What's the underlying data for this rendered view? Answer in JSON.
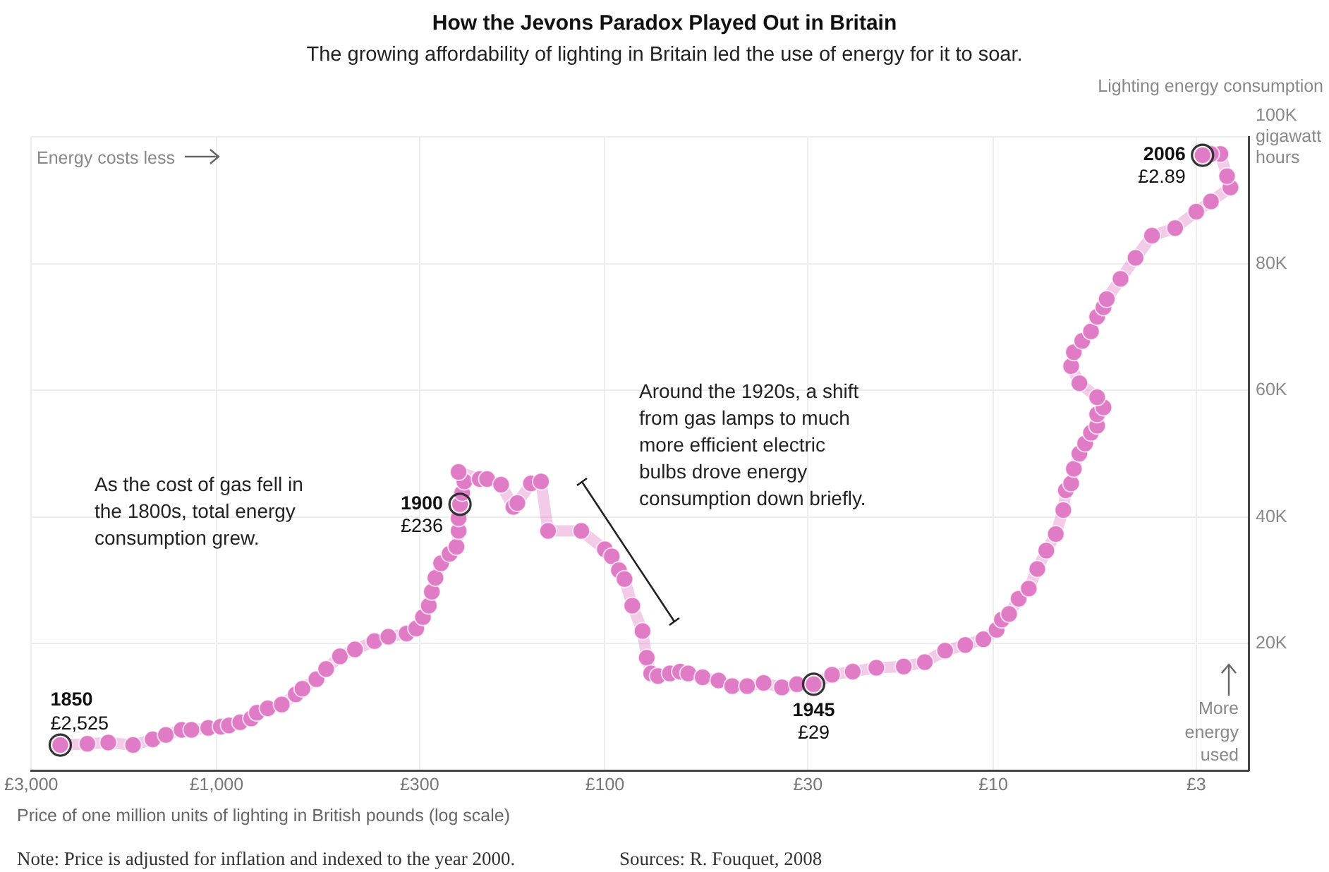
{
  "chart_data": {
    "type": "line",
    "title": "How the Jevons Paradox Played Out in Britain",
    "subtitle": "The growing affordability of lighting in Britain led the use of energy for it to soar.",
    "xlabel": "Price of one million units of lighting in British pounds (log scale)",
    "ylabel": "Lighting energy consumption",
    "log": "x",
    "grid": true,
    "marker": "circle",
    "xlim": [
      3000,
      2.2
    ],
    "xticks": [
      {
        "value": 3000,
        "label": "£3,000"
      },
      {
        "value": 1000,
        "label": "£1,000"
      },
      {
        "value": 300,
        "label": "£300"
      },
      {
        "value": 100,
        "label": "£100"
      },
      {
        "value": 30,
        "label": "£30"
      },
      {
        "value": 10,
        "label": "£10"
      },
      {
        "value": 3,
        "label": "£3"
      }
    ],
    "ylim": [
      0,
      100000
    ],
    "yticks": [
      {
        "value": 20000,
        "label": "20K"
      },
      {
        "value": 40000,
        "label": "40K"
      },
      {
        "value": 60000,
        "label": "60K"
      },
      {
        "value": 80000,
        "label": "80K"
      },
      {
        "value": 100000,
        "label": "100K\ngigawatt\nhours"
      }
    ],
    "x": [
      2525,
      2150,
      1900,
      1640,
      1460,
      1350,
      1230,
      1160,
      1050,
      975,
      929,
      869,
      814,
      787,
      738,
      679,
      625,
      601,
      553,
      522,
      481,
      440,
      392,
      361,
      324,
      306,
      294,
      284,
      279,
      273,
      264,
      251,
      241,
      238,
      238,
      236,
      233,
      230,
      238,
      210,
      201,
      185,
      172,
      168,
      155,
      146,
      140,
      115,
      100,
      96,
      92,
      89,
      85,
      80,
      78,
      76,
      73,
      68,
      64,
      61,
      56,
      51,
      47,
      43,
      39,
      35,
      32,
      29,
      26,
      23,
      20,
      17,
      15,
      13.3,
      11.8,
      10.6,
      9.8,
      9.5,
      9.1,
      8.6,
      8.1,
      7.7,
      7.3,
      6.9,
      6.6,
      6.5,
      6.3,
      6.2,
      6,
      5.8,
      5.6,
      5.4,
      5.4,
      5.2,
      5.4,
      6,
      6.3,
      6.2,
      5.9,
      5.6,
      5.4,
      5.2,
      5.1,
      4.7,
      4.3,
      3.9,
      3.4,
      3.0,
      2.75,
      2.45,
      2.5,
      2.6,
      2.75,
      2.89
    ],
    "series": [
      {
        "color": "#e07bc5",
        "values": [
          4000,
          4200,
          4400,
          4000,
          4900,
          5600,
          6400,
          6400,
          6700,
          6900,
          7100,
          7600,
          8200,
          9100,
          9800,
          10400,
          12000,
          12900,
          14400,
          16000,
          18000,
          19100,
          20400,
          21100,
          21600,
          22400,
          24200,
          26000,
          28200,
          30400,
          32700,
          34200,
          35300,
          37800,
          39800,
          42000,
          43800,
          45600,
          47100,
          46000,
          46000,
          45100,
          41600,
          42200,
          45300,
          45600,
          37800,
          37800,
          34900,
          33800,
          31600,
          30200,
          26000,
          22000,
          17800,
          15300,
          14900,
          15300,
          15600,
          15300,
          14700,
          14200,
          13300,
          13300,
          13800,
          13100,
          13600,
          13600,
          15100,
          15600,
          16200,
          16400,
          17100,
          18900,
          19800,
          20700,
          22200,
          23800,
          24700,
          27100,
          28700,
          31800,
          34700,
          37300,
          41100,
          44200,
          45300,
          47600,
          50000,
          51600,
          53300,
          54400,
          56200,
          57300,
          58900,
          61100,
          63800,
          66000,
          67800,
          69300,
          71600,
          73100,
          74400,
          77600,
          80900,
          84400,
          85600,
          88200,
          89800,
          92000,
          93800,
          97300,
          97300,
          97100
        ]
      }
    ],
    "annotations": [
      "Energy costs less",
      "As the cost of gas fell in the 1800s, total energy consumption grew.",
      "Around the 1920s, a shift from gas lamps to much more efficient electric bulbs drove energy consumption down briefly.",
      "More energy used",
      {
        "text": "1850\n£2,525",
        "x": 2525,
        "y": 4000
      },
      {
        "text": "1900\n£236",
        "x": 236,
        "y": 42000
      },
      {
        "text": "1945\n£29",
        "x": 29,
        "y": 13600
      },
      {
        "text": "2006\n£2.89",
        "x": 2.89,
        "y": 97100
      },
      "Note: Price is adjusted for inflation and indexed to the year 2000.",
      "Sources: R. Fouquet, 2008"
    ]
  }
}
